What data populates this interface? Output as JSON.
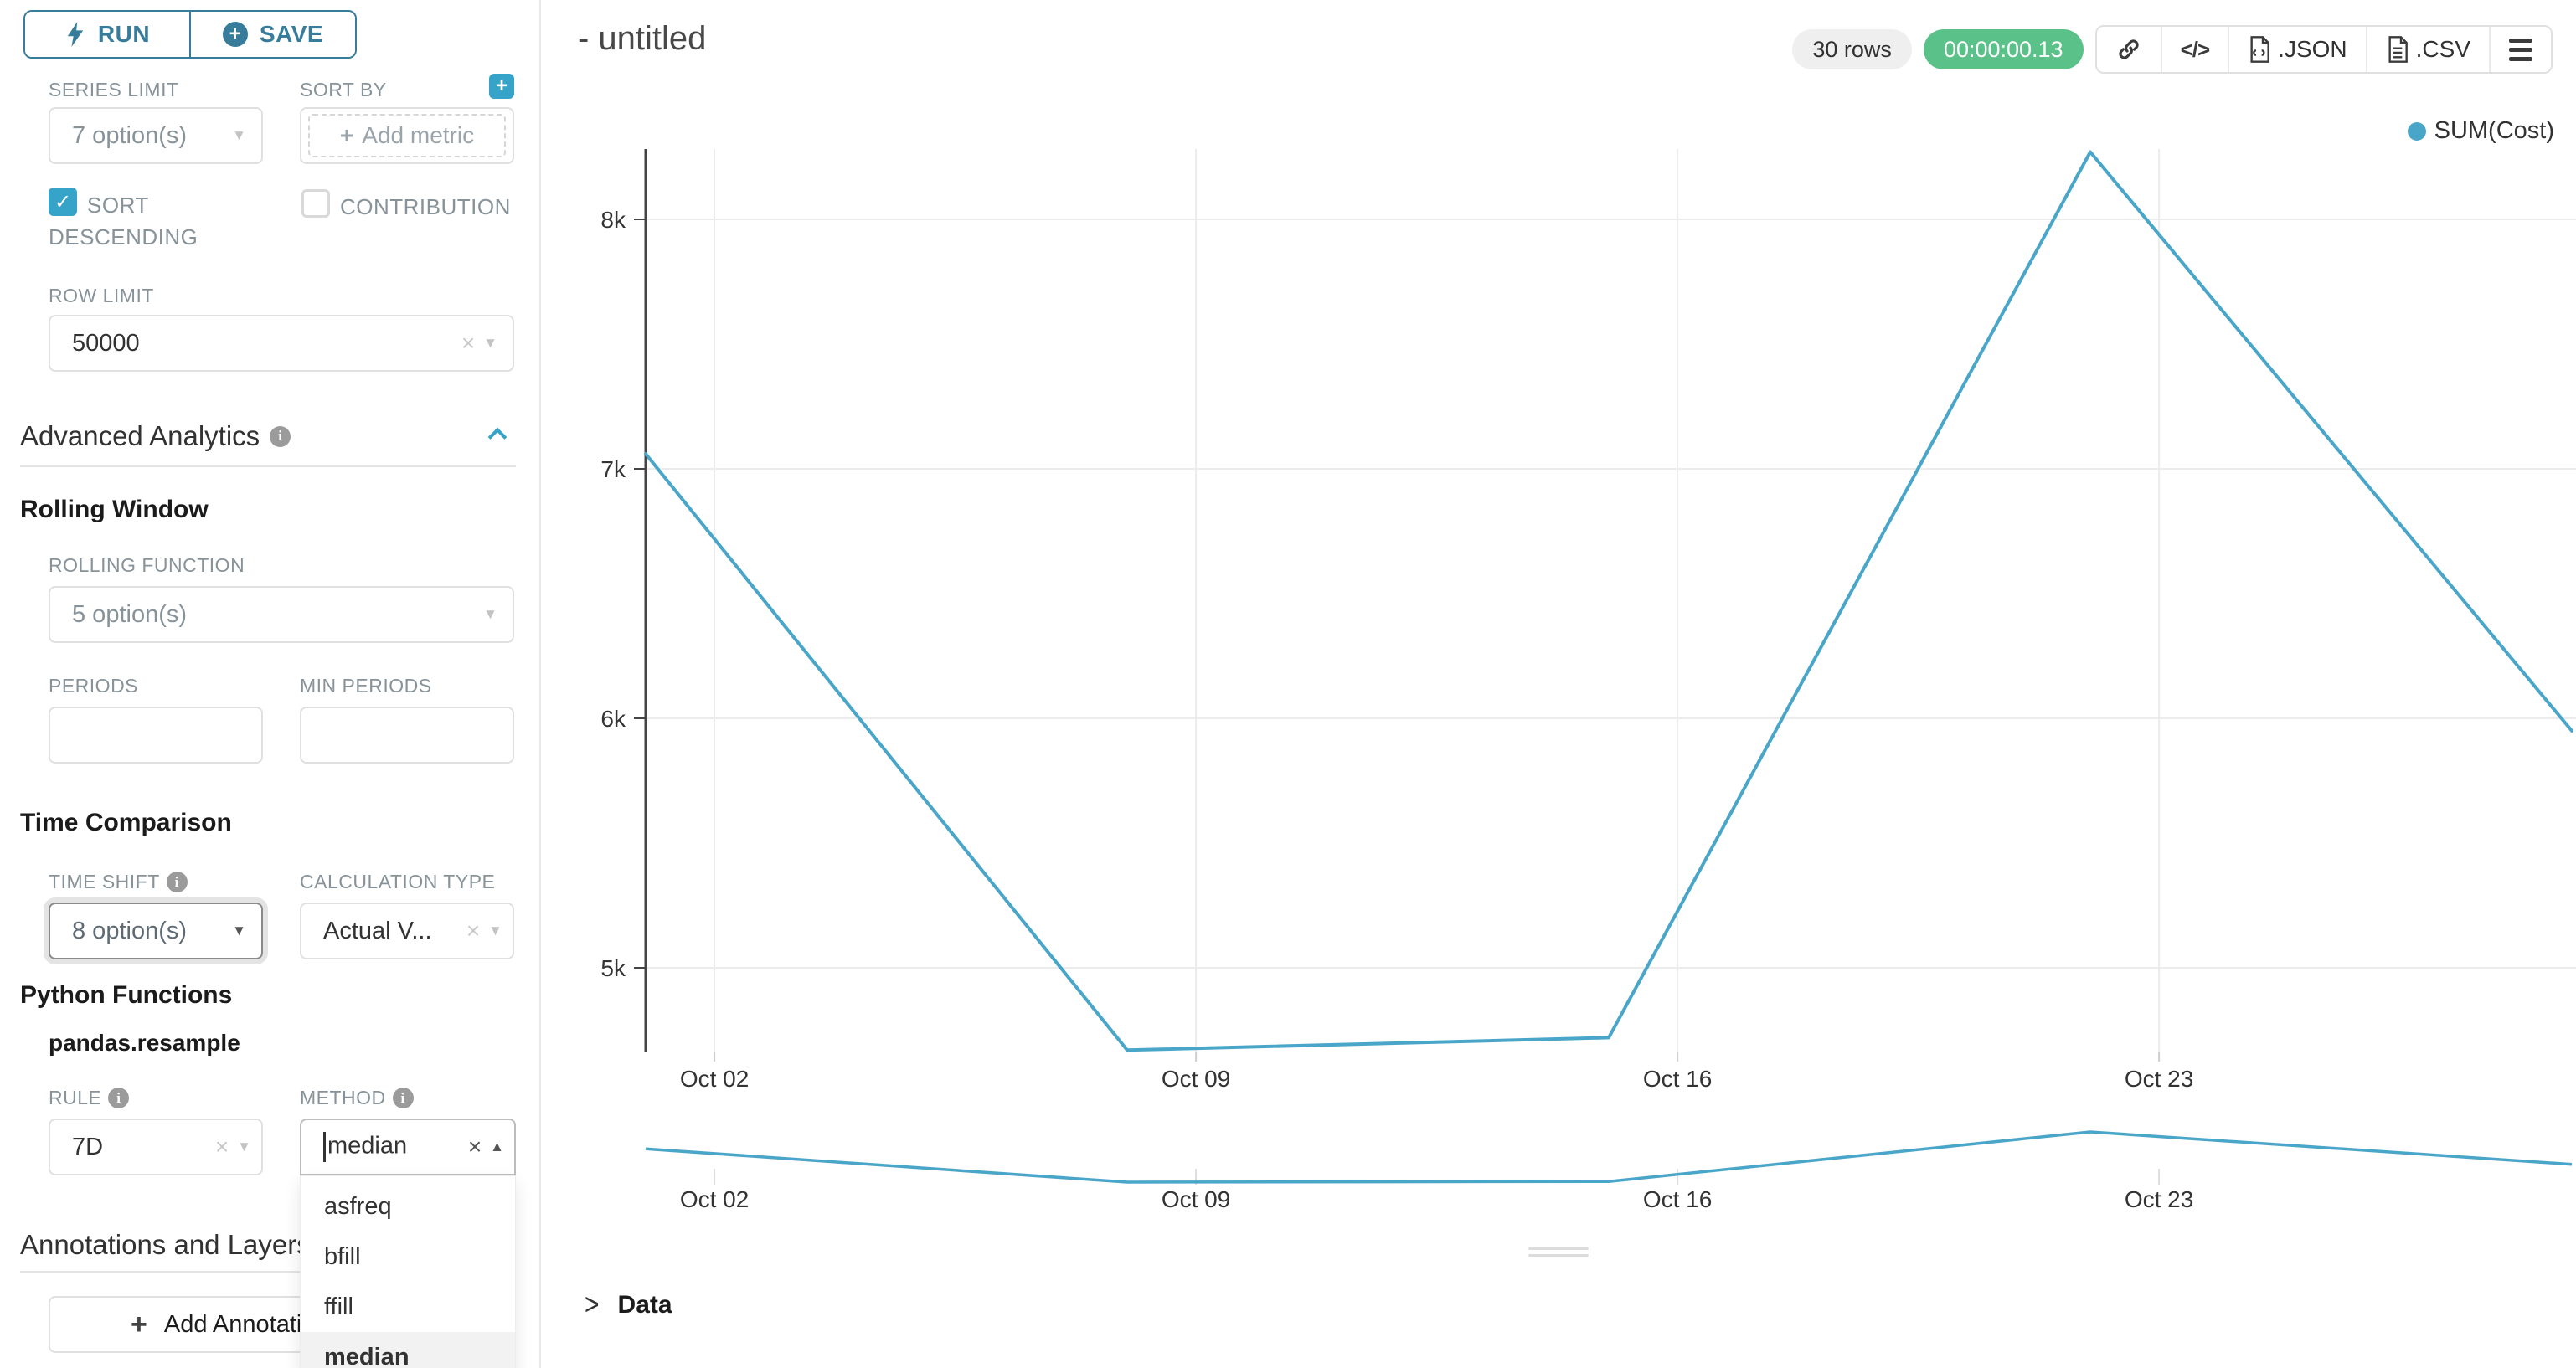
{
  "colors": {
    "primary": "#377d9b",
    "teal": "#36a3c9",
    "series_line": "#4aa6c9",
    "success_green": "#5ac189",
    "label_gray": "#879399",
    "text_dark": "#323232",
    "border": "#e0e0e0",
    "gridline": "#ececec",
    "axis": "#444444"
  },
  "icons": {
    "caret_down": "▼",
    "caret_up": "▲",
    "clear": "×",
    "check": "✓",
    "plus": "+",
    "info": "i",
    "chevron_right": ">",
    "code": "</>"
  },
  "left_panel": {
    "run_label": "RUN",
    "save_label": "SAVE",
    "series_limit": {
      "label": "SERIES LIMIT",
      "value": "7 option(s)"
    },
    "sort_by": {
      "label": "SORT BY",
      "placeholder": "Add metric"
    },
    "sort_descending_label_line1": "SORT",
    "sort_descending_label_line2": "DESCENDING",
    "contribution_label": "CONTRIBUTION",
    "row_limit": {
      "label": "ROW LIMIT",
      "value": "50000"
    },
    "advanced_analytics_title": "Advanced Analytics",
    "rolling_window": {
      "title": "Rolling Window",
      "rolling_function_label": "ROLLING FUNCTION",
      "rolling_function_value": "5 option(s)",
      "periods_label": "PERIODS",
      "min_periods_label": "MIN PERIODS"
    },
    "time_comparison": {
      "title": "Time Comparison",
      "time_shift_label": "TIME SHIFT",
      "time_shift_value": "8 option(s)",
      "calculation_type_label": "CALCULATION TYPE",
      "calculation_type_value": "Actual V..."
    },
    "python_functions": {
      "title": "Python Functions",
      "subtitle": "pandas.resample",
      "rule_label": "RULE",
      "rule_value": "7D",
      "method_label": "METHOD",
      "method_value": "median",
      "method_options": [
        "asfreq",
        "bfill",
        "ffill",
        "median"
      ],
      "method_selected": "median"
    },
    "annotations": {
      "title": "Annotations and Layers",
      "add_button_label": "Add Annotation Layer"
    }
  },
  "header": {
    "title": "- untitled",
    "rows_badge": "30 rows",
    "timer": "00:00:00.13",
    "export_json_label": ".JSON",
    "export_csv_label": ".CSV"
  },
  "chart_data": {
    "type": "line",
    "title": "",
    "legend_position": "top-right",
    "grid": true,
    "x_axis_type": "time",
    "ylim": [
      4650,
      8280
    ],
    "y_ticks": [
      {
        "label": "8k",
        "value": 8000
      },
      {
        "label": "7k",
        "value": 7000
      },
      {
        "label": "6k",
        "value": 6000
      },
      {
        "label": "5k",
        "value": 5000
      }
    ],
    "x_ticks": [
      {
        "label": "Oct 02",
        "day": 1
      },
      {
        "label": "Oct 09",
        "day": 8
      },
      {
        "label": "Oct 16",
        "day": 15
      },
      {
        "label": "Oct 23",
        "day": 22
      }
    ],
    "series": [
      {
        "name": "SUM(Cost)",
        "color": "#4aa6c9",
        "x": [
          "Oct 01",
          "Oct 08",
          "Oct 15",
          "Oct 22",
          "Oct 29"
        ],
        "x_day_offsets": [
          0,
          7,
          14,
          21,
          28
        ],
        "values": [
          7060,
          4670,
          4720,
          8270,
          5950
        ]
      }
    ],
    "mini_chart": {
      "present": true,
      "same_series": true
    }
  },
  "data_panel": {
    "title": "Data"
  }
}
